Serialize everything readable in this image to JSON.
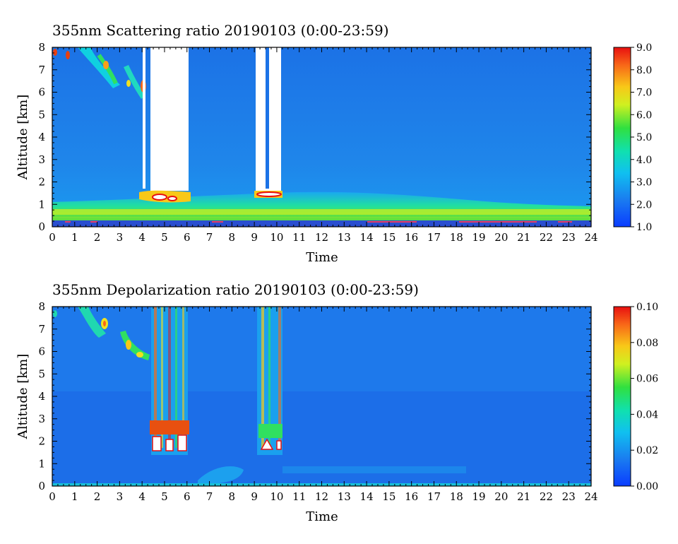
{
  "panels": [
    {
      "title": "355nm Scattering ratio  20190103 (0:00-23:59)",
      "ylabel": "Altitude [km]",
      "xlabel": "Time"
    },
    {
      "title": "355nm Depolarization ratio  20190103 (0:00-23:59)",
      "ylabel": "Altitude [km]",
      "xlabel": "Time"
    }
  ],
  "chart_data": [
    {
      "type": "heatmap",
      "title": "355nm Scattering ratio  20190103 (0:00-23:59)",
      "xlabel": "Time",
      "ylabel": "Altitude [km]",
      "xlim": [
        0,
        24
      ],
      "ylim": [
        0,
        8
      ],
      "x_ticks": [
        "0",
        "1",
        "2",
        "3",
        "4",
        "5",
        "6",
        "7",
        "8",
        "9",
        "10",
        "11",
        "12",
        "13",
        "14",
        "15",
        "16",
        "17",
        "18",
        "19",
        "20",
        "21",
        "22",
        "23",
        "24"
      ],
      "y_ticks": [
        "0",
        "1",
        "2",
        "3",
        "4",
        "5",
        "6",
        "7",
        "8"
      ],
      "colorbar": {
        "min": 1.0,
        "max": 9.0,
        "ticks": [
          "1.0",
          "2.0",
          "3.0",
          "4.0",
          "5.0",
          "6.0",
          "7.0",
          "8.0",
          "9.0"
        ]
      },
      "features": [
        {
          "desc": "boundary layer enhancement",
          "x": [
            0,
            24
          ],
          "y": [
            0.3,
            1.3
          ],
          "value": 4.5
        },
        {
          "desc": "opaque cloud / no data (white)",
          "x": [
            4.2,
            6.0
          ],
          "y": [
            1.5,
            8.0
          ],
          "value": "saturated"
        },
        {
          "desc": "opaque cloud / no data (white)",
          "x": [
            9.1,
            10.1
          ],
          "y": [
            1.5,
            8.0
          ],
          "value": "saturated"
        },
        {
          "desc": "cirrus streaks",
          "x": [
            0,
            4.2
          ],
          "y": [
            5.8,
            8.0
          ],
          "value": 7.0
        }
      ],
      "colors": {
        "low": "#1050e8",
        "mid": "#10e0c0",
        "high": "#e82010"
      }
    },
    {
      "type": "heatmap",
      "title": "355nm Depolarization ratio  20190103 (0:00-23:59)",
      "xlabel": "Time",
      "ylabel": "Altitude [km]",
      "xlim": [
        0,
        24
      ],
      "ylim": [
        0,
        8
      ],
      "x_ticks": [
        "0",
        "1",
        "2",
        "3",
        "4",
        "5",
        "6",
        "7",
        "8",
        "9",
        "10",
        "11",
        "12",
        "13",
        "14",
        "15",
        "16",
        "17",
        "18",
        "19",
        "20",
        "21",
        "22",
        "23",
        "24"
      ],
      "y_ticks": [
        "0",
        "1",
        "2",
        "3",
        "4",
        "5",
        "6",
        "7",
        "8"
      ],
      "colorbar": {
        "min": 0.0,
        "max": 0.1,
        "ticks": [
          "0.00",
          "0.02",
          "0.04",
          "0.06",
          "0.08",
          "0.10"
        ]
      },
      "features": [
        {
          "desc": "cirrus depolarization streaks",
          "x": [
            1.5,
            4.2
          ],
          "y": [
            5.8,
            8.0
          ],
          "value": 0.06
        },
        {
          "desc": "cloud column depolarization",
          "x": [
            4.3,
            6.0
          ],
          "y": [
            1.5,
            8.0
          ],
          "value": 0.09
        },
        {
          "desc": "cloud column depolarization",
          "x": [
            9.1,
            10.1
          ],
          "y": [
            1.5,
            8.0
          ],
          "value": 0.08
        }
      ],
      "colors": {
        "low": "#1050e8",
        "mid": "#10e0c0",
        "high": "#e82010"
      }
    }
  ]
}
